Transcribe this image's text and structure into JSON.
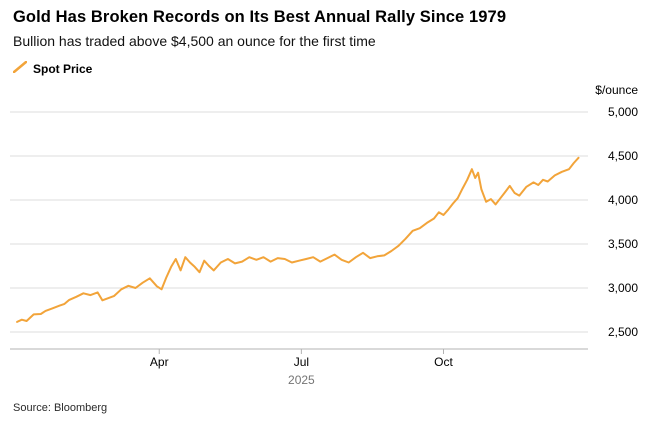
{
  "header": {
    "title": "Gold Has Broken Records on Its Best Annual Rally Since 1979",
    "subtitle": "Bullion has traded above $4,500 an ounce for the first time"
  },
  "legend": {
    "label": "Spot Price",
    "swatch_color": "#F2A43A"
  },
  "source": "Source: Bloomberg",
  "chart_data": {
    "type": "line",
    "title": "Gold Has Broken Records on Its Best Annual Rally Since 1979",
    "subtitle": "Bullion has traded above $4,500 an ounce for the first time",
    "ylabel_unit": "$/ounce",
    "x_unit": "month of 2025 (1=Jan ... 12.85≈late Dec)",
    "xlim": [
      0.85,
      13.05
    ],
    "ylim": [
      2307,
      5000
    ],
    "grid": "horizontal",
    "legend_position": "top-left",
    "line_color": "#F2A43A",
    "grid_color": "#dcdcdc",
    "axis_color": "#b3b3b3",
    "y_ticks": [
      5000,
      4500,
      4000,
      3500,
      3000,
      2500
    ],
    "y_tick_labels": [
      "5,000",
      "4,500",
      "4,000",
      "3,500",
      "3,000",
      "2,500"
    ],
    "x_ticks": [
      {
        "x": 4,
        "label": "Apr"
      },
      {
        "x": 7,
        "label": "Jul"
      },
      {
        "x": 10,
        "label": "Oct"
      }
    ],
    "x_axis_label": "2025",
    "series": [
      {
        "name": "Spot Price",
        "color": "#F2A43A",
        "x": [
          1.0,
          1.1,
          1.2,
          1.35,
          1.5,
          1.6,
          1.75,
          1.9,
          2.0,
          2.1,
          2.25,
          2.4,
          2.55,
          2.7,
          2.8,
          2.95,
          3.05,
          3.2,
          3.35,
          3.5,
          3.65,
          3.8,
          3.95,
          4.05,
          4.15,
          4.25,
          4.35,
          4.45,
          4.55,
          4.65,
          4.75,
          4.85,
          4.95,
          5.05,
          5.15,
          5.3,
          5.45,
          5.6,
          5.75,
          5.9,
          6.05,
          6.2,
          6.35,
          6.5,
          6.65,
          6.8,
          6.95,
          7.1,
          7.25,
          7.4,
          7.55,
          7.7,
          7.85,
          8.0,
          8.15,
          8.3,
          8.45,
          8.6,
          8.75,
          8.9,
          9.05,
          9.2,
          9.35,
          9.5,
          9.65,
          9.8,
          9.9,
          10.0,
          10.1,
          10.2,
          10.3,
          10.4,
          10.5,
          10.6,
          10.67,
          10.73,
          10.8,
          10.9,
          11.0,
          11.1,
          11.2,
          11.3,
          11.4,
          11.5,
          11.6,
          11.75,
          11.9,
          12.0,
          12.1,
          12.2,
          12.35,
          12.5,
          12.65,
          12.75,
          12.85
        ],
        "values": [
          2615,
          2640,
          2625,
          2700,
          2705,
          2740,
          2770,
          2800,
          2820,
          2865,
          2900,
          2940,
          2920,
          2950,
          2860,
          2890,
          2910,
          2985,
          3025,
          3000,
          3060,
          3110,
          3020,
          2985,
          3120,
          3240,
          3330,
          3200,
          3350,
          3290,
          3240,
          3180,
          3310,
          3250,
          3200,
          3290,
          3330,
          3280,
          3300,
          3350,
          3320,
          3350,
          3300,
          3340,
          3330,
          3290,
          3310,
          3330,
          3350,
          3300,
          3340,
          3380,
          3320,
          3290,
          3350,
          3400,
          3340,
          3360,
          3370,
          3420,
          3480,
          3560,
          3650,
          3680,
          3740,
          3790,
          3860,
          3830,
          3890,
          3960,
          4020,
          4130,
          4230,
          4350,
          4250,
          4310,
          4120,
          3980,
          4010,
          3950,
          4020,
          4090,
          4160,
          4080,
          4050,
          4150,
          4200,
          4170,
          4230,
          4210,
          4280,
          4320,
          4350,
          4420,
          4480
        ]
      }
    ]
  }
}
